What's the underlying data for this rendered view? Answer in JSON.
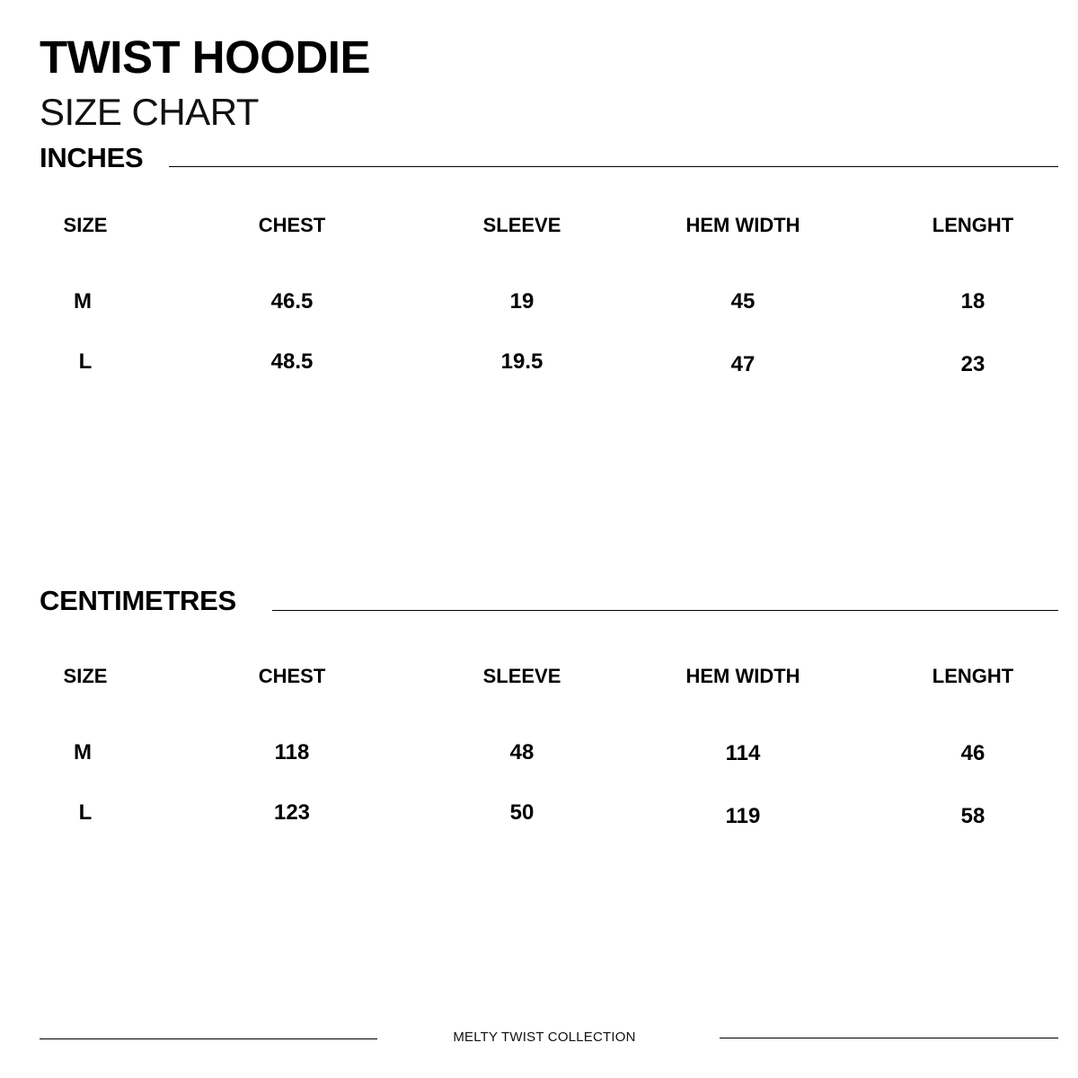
{
  "title": "TWIST HOODIE",
  "subtitle": "SIZE CHART",
  "tables": [
    {
      "label": "INCHES",
      "headers": [
        "SIZE",
        "CHEST",
        "SLEEVE",
        "HEM WIDTH",
        "LENGHT"
      ],
      "rows": [
        [
          "M",
          "46.5",
          "19",
          "45",
          "18"
        ],
        [
          "L",
          "48.5",
          "19.5",
          "47",
          "23"
        ]
      ]
    },
    {
      "label": "CENTIMETRES",
      "headers": [
        "SIZE",
        "CHEST",
        "SLEEVE",
        "HEM WIDTH",
        "LENGHT"
      ],
      "rows": [
        [
          "M",
          "118",
          "48",
          "114",
          "46"
        ],
        [
          "L",
          "123",
          "50",
          "119",
          "58"
        ]
      ]
    }
  ],
  "footer": "MELTY TWIST COLLECTION"
}
